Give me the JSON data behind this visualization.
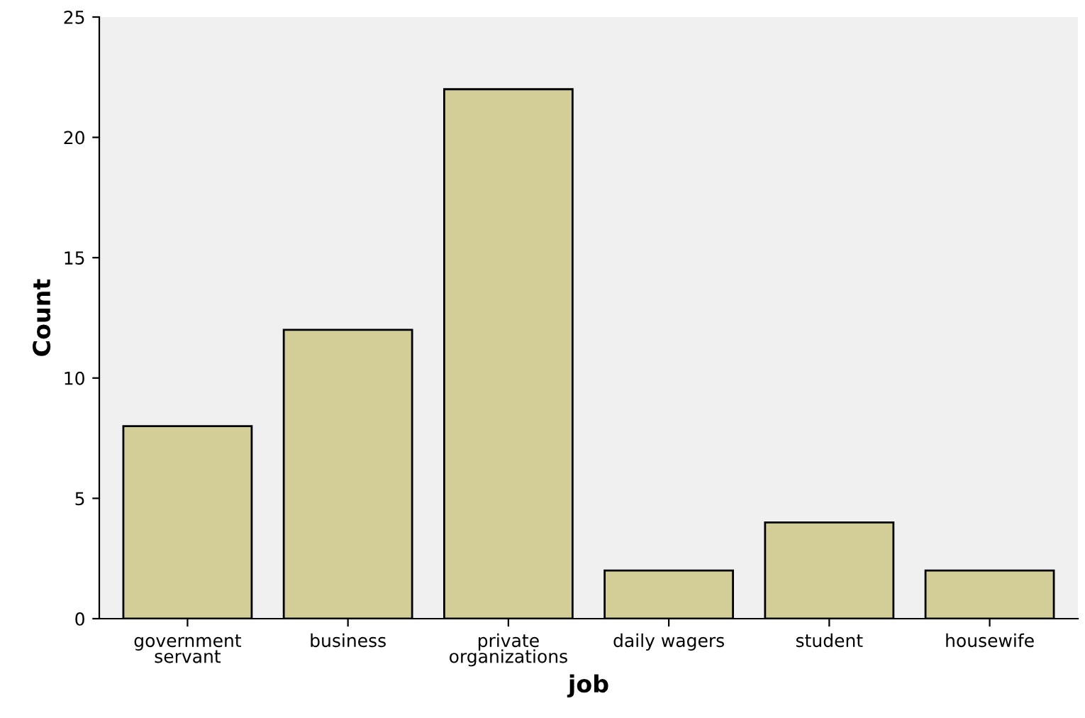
{
  "chart_data": {
    "type": "bar",
    "xlabel": "job",
    "ylabel": "Count",
    "categories": [
      "government\nservant",
      "business",
      "private\norganizations",
      "daily wagers",
      "student",
      "housewife"
    ],
    "values": [
      8,
      12,
      22,
      2,
      4,
      2
    ],
    "color": "#d3ce97",
    "ylim": [
      0,
      25
    ],
    "yticks": [
      0,
      5,
      10,
      15,
      20,
      25
    ],
    "grid": false
  }
}
